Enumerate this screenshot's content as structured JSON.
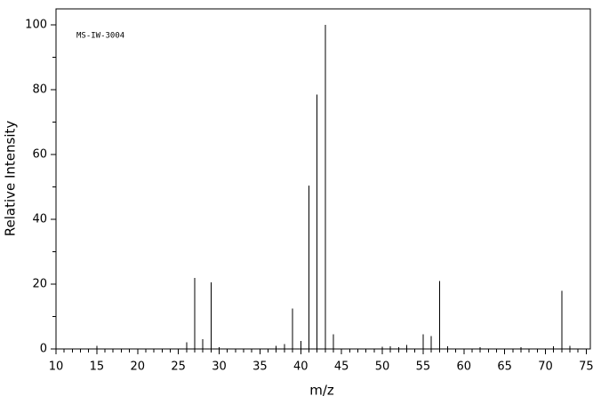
{
  "chart_data": {
    "type": "stem",
    "annotation": "MS-IW-3004",
    "xlabel": "m/z",
    "ylabel": "Relative Intensity",
    "x": [
      15,
      26,
      27,
      28,
      29,
      30,
      37,
      38,
      39,
      40,
      41,
      42,
      43,
      44,
      50,
      51,
      52,
      53,
      55,
      56,
      57,
      58,
      62,
      67,
      71,
      72,
      73
    ],
    "values": [
      1,
      2,
      22,
      3,
      20.5,
      0.5,
      1,
      1.5,
      12.5,
      2.5,
      50.5,
      78.5,
      100,
      4.5,
      0.7,
      0.8,
      0.5,
      1.2,
      4.5,
      4,
      21,
      0.8,
      0.5,
      0.5,
      0.8,
      18,
      1
    ],
    "color": "#000000",
    "xlim": [
      10,
      75.5
    ],
    "ylim": [
      0,
      105
    ],
    "xticks": [
      10,
      15,
      20,
      25,
      30,
      35,
      40,
      45,
      50,
      55,
      60,
      65,
      70,
      75
    ],
    "xminorticks": [
      11,
      12,
      13,
      14,
      16,
      17,
      18,
      19,
      21,
      22,
      23,
      24,
      26,
      27,
      28,
      29,
      31,
      32,
      33,
      34,
      36,
      37,
      38,
      39,
      41,
      42,
      43,
      44,
      46,
      47,
      48,
      49,
      51,
      52,
      53,
      54,
      56,
      57,
      58,
      59,
      61,
      62,
      63,
      64,
      66,
      67,
      68,
      69,
      71,
      72,
      73,
      74
    ],
    "yticks": [
      0,
      20,
      40,
      60,
      80,
      100
    ],
    "yminorticks": [
      10,
      30,
      50,
      70,
      90
    ]
  }
}
